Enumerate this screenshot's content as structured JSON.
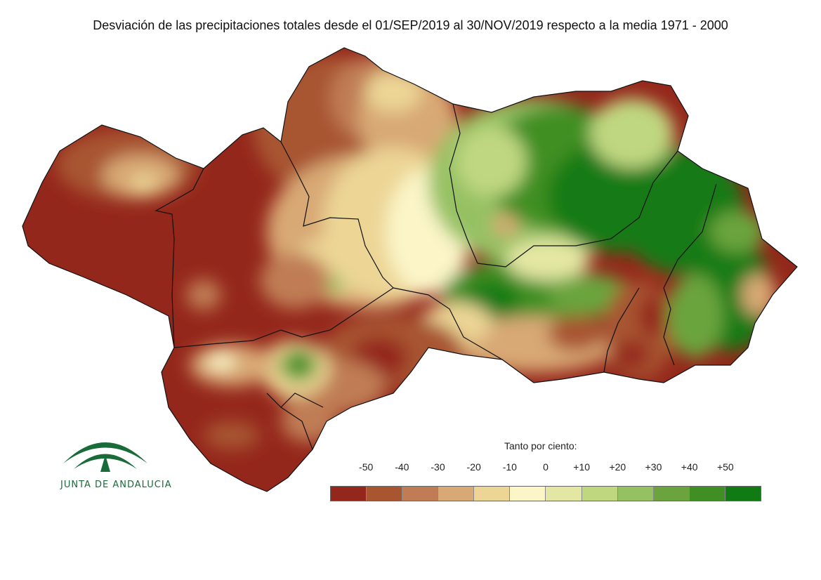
{
  "title": "Desviación de las precipitaciones totales desde el 01/SEP/2019 al 30/NOV/2019 respecto a la media 1971 - 2000",
  "logo": {
    "text": "JUNTA DE ANDALUCIA",
    "color": "#1a6b3a"
  },
  "legend": {
    "title": "Tanto por ciento:",
    "ticks": [
      "-50",
      "-40",
      "-30",
      "-20",
      "-10",
      "0",
      "+10",
      "+20",
      "+30",
      "+40",
      "+50"
    ],
    "colors": [
      "#94271b",
      "#a85530",
      "#c07d55",
      "#d8a974",
      "#ecd595",
      "#fbf5c8",
      "#e4e7a3",
      "#bfd780",
      "#96c163",
      "#6ba43c",
      "#3f8f24",
      "#127a12"
    ]
  }
}
